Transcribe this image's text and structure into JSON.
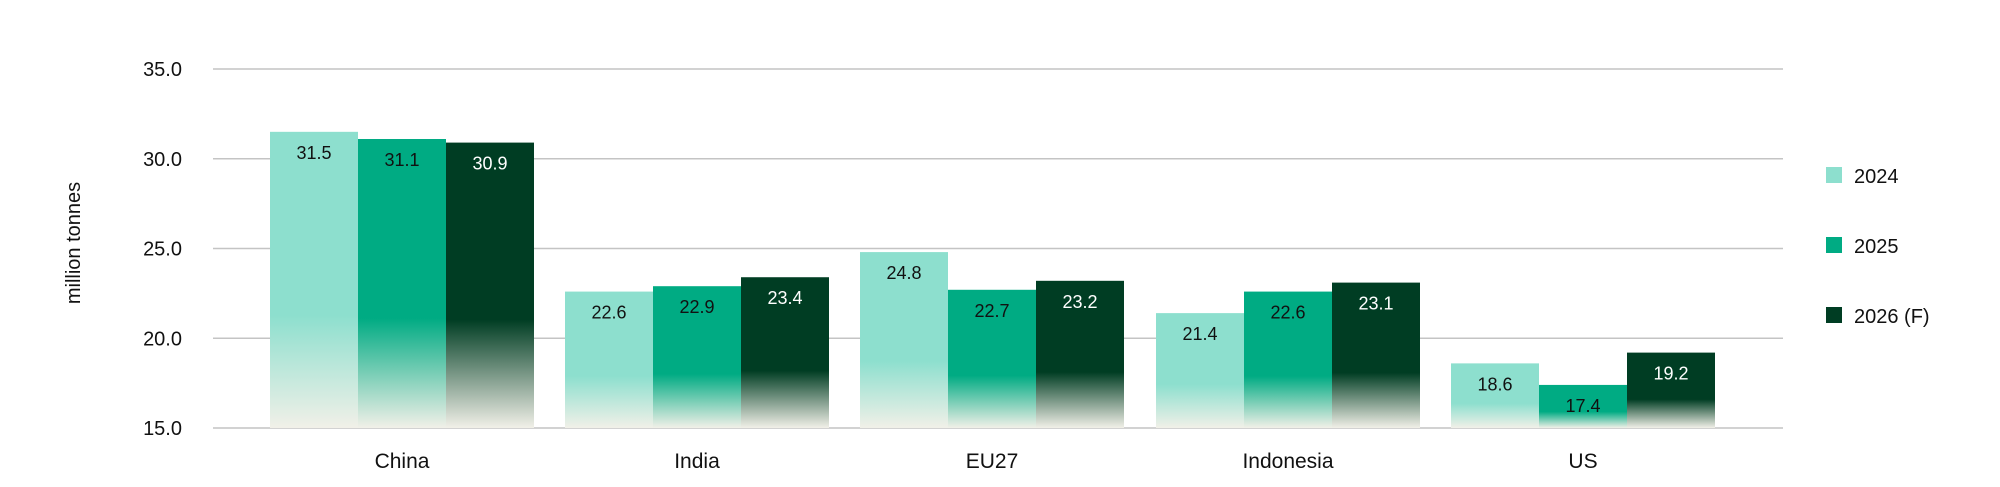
{
  "chart_data": {
    "type": "bar",
    "title": "",
    "xlabel": "",
    "ylabel": "million tonnes",
    "ylim": [
      15,
      35
    ],
    "yticks": [
      "35.0",
      "30.0",
      "25.0",
      "20.0",
      "15.0"
    ],
    "ytick_values": [
      35,
      30,
      25,
      20,
      15
    ],
    "grid": true,
    "legend_position": "right",
    "categories": [
      "China",
      "India",
      "EU27",
      "Indonesia",
      "US"
    ],
    "series": [
      {
        "name": "2024",
        "color": "#8ddfce",
        "label_color": "#111111",
        "values": [
          31.5,
          22.6,
          24.8,
          21.4,
          18.6
        ],
        "labels": [
          "31.5",
          "22.6",
          "24.8",
          "21.4",
          "18.6"
        ]
      },
      {
        "name": "2025",
        "color": "#00ab83",
        "label_color": "#111111",
        "values": [
          31.1,
          22.9,
          22.7,
          22.6,
          17.4
        ],
        "labels": [
          "31.1",
          "22.9",
          "22.7",
          "22.6",
          "17.4"
        ]
      },
      {
        "name": "2026 (F)",
        "color": "#003d23",
        "label_color": "#ffffff",
        "values": [
          30.9,
          23.4,
          23.2,
          23.1,
          19.2
        ],
        "labels": [
          "30.9",
          "23.4",
          "23.2",
          "23.1",
          "19.2"
        ]
      }
    ]
  }
}
